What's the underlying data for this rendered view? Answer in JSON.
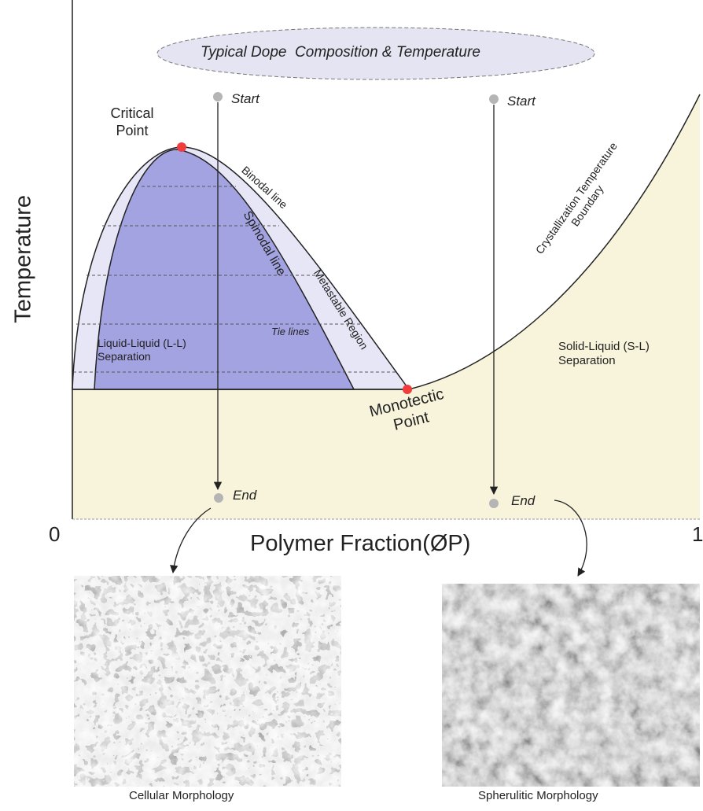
{
  "header": {
    "title": "Typical Dope  Composition & Temperature"
  },
  "paths": {
    "start_left": "Start",
    "start_right": "Start",
    "end_left": "End",
    "end_right": "End"
  },
  "regions": {
    "critical_point": "Critical Point",
    "binodal": "Binodal line",
    "spinodal": "Spinodal line",
    "metastable": "Metastable Region",
    "tie_lines": "Tie lines",
    "liquid_liquid": "Liquid-Liquid (L-L) Separation",
    "crystallization": "Crystallization Temperature Boundary",
    "solid_liquid": "Solid-Liquid (S-L) Separation",
    "monotectic_point": "Monotectic Point"
  },
  "axes": {
    "x_label": "Polymer Fraction(ØP)",
    "y_label": "Temperature",
    "x_min": "0",
    "x_max": "1"
  },
  "images": {
    "left_caption": "Cellular Morphology",
    "right_caption": "Spherulitic Morphology"
  }
}
